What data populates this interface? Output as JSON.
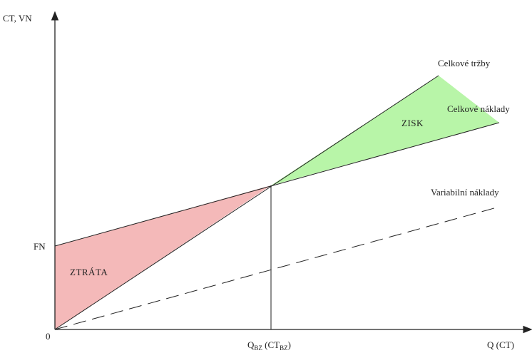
{
  "axes": {
    "y_label": "CT, VN",
    "x_label": "Q (CT)",
    "origin_label": "0",
    "fn_label": "FN",
    "break_even_label": {
      "main": "Q",
      "sub1": "BZ",
      "mid": " (CT",
      "sub2": "BZ",
      "end": ")"
    }
  },
  "lines": {
    "revenue": "Celkové tržby",
    "total_costs": "Celkové náklady",
    "variable_costs": "Variabilní náklady"
  },
  "areas": {
    "profit": "ZISK",
    "loss": "ZTRÁTA"
  },
  "colors": {
    "profit_fill": "#b8f5a8",
    "loss_fill": "#f4b9b9",
    "line": "#222222"
  }
}
